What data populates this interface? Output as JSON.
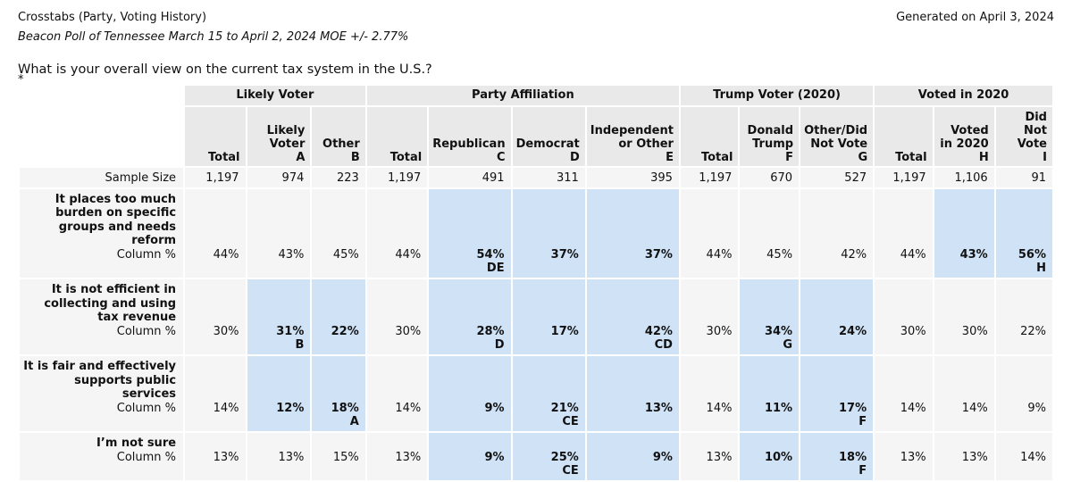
{
  "header": {
    "title": "Crosstabs (Party, Voting History)",
    "generated": "Generated on April 3, 2024",
    "subtitle": "Beacon Poll of Tennessee March 15 to April 2, 2024 MOE +/- 2.77%"
  },
  "question": "What is your overall view on the current tax system in the U.S.?",
  "footnote_marker": "*",
  "colors": {
    "highlight_blue": "#cfe2f6",
    "header_gray": "#e9e9e9",
    "row_gray": "#f5f5f5"
  },
  "table": {
    "groups": [
      {
        "label": "Likely Voter",
        "span": 3
      },
      {
        "label": "Party Affiliation",
        "span": 4
      },
      {
        "label": "Trump Voter (2020)",
        "span": 3
      },
      {
        "label": "Voted in 2020",
        "span": 3
      }
    ],
    "columns": [
      {
        "label": "Total",
        "letter": ""
      },
      {
        "label": "Likely Voter",
        "letter": "A"
      },
      {
        "label": "Other",
        "letter": "B"
      },
      {
        "label": "Total",
        "letter": ""
      },
      {
        "label": "Republican",
        "letter": "C"
      },
      {
        "label": "Democrat",
        "letter": "D"
      },
      {
        "label": "Independent or Other",
        "letter": "E"
      },
      {
        "label": "Total",
        "letter": ""
      },
      {
        "label": "Donald Trump",
        "letter": "F"
      },
      {
        "label": "Other/Did Not Vote",
        "letter": "G"
      },
      {
        "label": "Total",
        "letter": ""
      },
      {
        "label": "Voted in 2020",
        "letter": "H"
      },
      {
        "label": "Did Not Vote",
        "letter": "I"
      }
    ],
    "sample_size": {
      "label": "Sample Size",
      "values": [
        "1,197",
        "974",
        "223",
        "1,197",
        "491",
        "311",
        "395",
        "1,197",
        "670",
        "527",
        "1,197",
        "1,106",
        "91"
      ]
    },
    "metric_label": "Column %",
    "rows": [
      {
        "label": "It places too much burden on specific groups and needs reform",
        "cells": [
          {
            "v": "44%",
            "q": "",
            "hl": false
          },
          {
            "v": "43%",
            "q": "",
            "hl": false
          },
          {
            "v": "45%",
            "q": "",
            "hl": false
          },
          {
            "v": "44%",
            "q": "",
            "hl": false
          },
          {
            "v": "54%",
            "q": "DE",
            "hl": true
          },
          {
            "v": "37%",
            "q": "",
            "hl": true
          },
          {
            "v": "37%",
            "q": "",
            "hl": true
          },
          {
            "v": "44%",
            "q": "",
            "hl": false
          },
          {
            "v": "45%",
            "q": "",
            "hl": false
          },
          {
            "v": "42%",
            "q": "",
            "hl": false
          },
          {
            "v": "44%",
            "q": "",
            "hl": false
          },
          {
            "v": "43%",
            "q": "",
            "hl": true
          },
          {
            "v": "56%",
            "q": "H",
            "hl": true
          }
        ]
      },
      {
        "label": "It is not efficient in collecting and using tax revenue",
        "cells": [
          {
            "v": "30%",
            "q": "",
            "hl": false
          },
          {
            "v": "31%",
            "q": "B",
            "hl": true
          },
          {
            "v": "22%",
            "q": "",
            "hl": true
          },
          {
            "v": "30%",
            "q": "",
            "hl": false
          },
          {
            "v": "28%",
            "q": "D",
            "hl": true
          },
          {
            "v": "17%",
            "q": "",
            "hl": true
          },
          {
            "v": "42%",
            "q": "CD",
            "hl": true
          },
          {
            "v": "30%",
            "q": "",
            "hl": false
          },
          {
            "v": "34%",
            "q": "G",
            "hl": true
          },
          {
            "v": "24%",
            "q": "",
            "hl": true
          },
          {
            "v": "30%",
            "q": "",
            "hl": false
          },
          {
            "v": "30%",
            "q": "",
            "hl": false
          },
          {
            "v": "22%",
            "q": "",
            "hl": false
          }
        ]
      },
      {
        "label": "It is fair and effectively supports public services",
        "cells": [
          {
            "v": "14%",
            "q": "",
            "hl": false
          },
          {
            "v": "12%",
            "q": "",
            "hl": true
          },
          {
            "v": "18%",
            "q": "A",
            "hl": true
          },
          {
            "v": "14%",
            "q": "",
            "hl": false
          },
          {
            "v": "9%",
            "q": "",
            "hl": true
          },
          {
            "v": "21%",
            "q": "CE",
            "hl": true
          },
          {
            "v": "13%",
            "q": "",
            "hl": true
          },
          {
            "v": "14%",
            "q": "",
            "hl": false
          },
          {
            "v": "11%",
            "q": "",
            "hl": true
          },
          {
            "v": "17%",
            "q": "F",
            "hl": true
          },
          {
            "v": "14%",
            "q": "",
            "hl": false
          },
          {
            "v": "14%",
            "q": "",
            "hl": false
          },
          {
            "v": "9%",
            "q": "",
            "hl": false
          }
        ]
      },
      {
        "label": "I’m not sure",
        "cells": [
          {
            "v": "13%",
            "q": "",
            "hl": false
          },
          {
            "v": "13%",
            "q": "",
            "hl": false
          },
          {
            "v": "15%",
            "q": "",
            "hl": false
          },
          {
            "v": "13%",
            "q": "",
            "hl": false
          },
          {
            "v": "9%",
            "q": "",
            "hl": true
          },
          {
            "v": "25%",
            "q": "CE",
            "hl": true
          },
          {
            "v": "9%",
            "q": "",
            "hl": true
          },
          {
            "v": "13%",
            "q": "",
            "hl": false
          },
          {
            "v": "10%",
            "q": "",
            "hl": true
          },
          {
            "v": "18%",
            "q": "F",
            "hl": true
          },
          {
            "v": "13%",
            "q": "",
            "hl": false
          },
          {
            "v": "13%",
            "q": "",
            "hl": false
          },
          {
            "v": "14%",
            "q": "",
            "hl": false
          }
        ]
      }
    ]
  }
}
